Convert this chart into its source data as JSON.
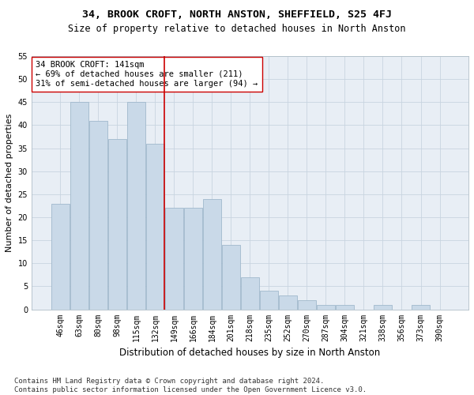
{
  "title": "34, BROOK CROFT, NORTH ANSTON, SHEFFIELD, S25 4FJ",
  "subtitle": "Size of property relative to detached houses in North Anston",
  "xlabel": "Distribution of detached houses by size in North Anston",
  "ylabel": "Number of detached properties",
  "categories": [
    "46sqm",
    "63sqm",
    "80sqm",
    "98sqm",
    "115sqm",
    "132sqm",
    "149sqm",
    "166sqm",
    "184sqm",
    "201sqm",
    "218sqm",
    "235sqm",
    "252sqm",
    "270sqm",
    "287sqm",
    "304sqm",
    "321sqm",
    "338sqm",
    "356sqm",
    "373sqm",
    "390sqm"
  ],
  "values": [
    23,
    45,
    41,
    37,
    45,
    36,
    22,
    22,
    24,
    14,
    7,
    4,
    3,
    2,
    1,
    1,
    0,
    1,
    0,
    1,
    0
  ],
  "bar_color": "#c9d9e8",
  "bar_edge_color": "#a0b8cc",
  "vline_index": 6,
  "vline_color": "#cc0000",
  "annotation_text": "34 BROOK CROFT: 141sqm\n← 69% of detached houses are smaller (211)\n31% of semi-detached houses are larger (94) →",
  "annotation_box_color": "#ffffff",
  "annotation_box_edge_color": "#cc0000",
  "ylim": [
    0,
    55
  ],
  "yticks": [
    0,
    5,
    10,
    15,
    20,
    25,
    30,
    35,
    40,
    45,
    50,
    55
  ],
  "grid_color": "#c8d4e0",
  "background_color": "#e8eef5",
  "footer_line1": "Contains HM Land Registry data © Crown copyright and database right 2024.",
  "footer_line2": "Contains public sector information licensed under the Open Government Licence v3.0.",
  "title_fontsize": 9.5,
  "subtitle_fontsize": 8.5,
  "xlabel_fontsize": 8.5,
  "ylabel_fontsize": 8,
  "tick_fontsize": 7,
  "annotation_fontsize": 7.5,
  "footer_fontsize": 6.5
}
